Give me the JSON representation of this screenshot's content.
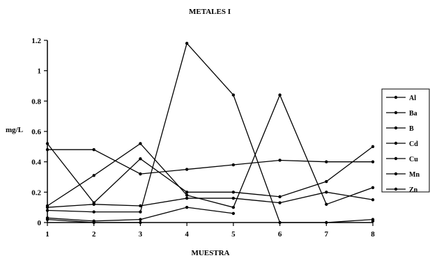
{
  "chart_data": {
    "type": "line",
    "title": "METALES I",
    "xlabel": "MUESTRA",
    "ylabel": "mg/L",
    "x": [
      1,
      2,
      3,
      4,
      5,
      6,
      7,
      8
    ],
    "xlim": [
      1,
      8
    ],
    "ylim": [
      0,
      1.2
    ],
    "yticks": [
      "0",
      "0.2",
      "0.4",
      "0.6",
      "0.8",
      "1",
      "1.2"
    ],
    "grid": false,
    "legend_position": "right",
    "series": [
      {
        "name": "Al",
        "values": [
          0.48,
          0.48,
          0.32,
          0.35,
          0.38,
          0.41,
          0.4,
          0.4
        ]
      },
      {
        "name": "Ba",
        "values": [
          0.52,
          0.13,
          0.42,
          0.2,
          0.2,
          0.17,
          0.27,
          0.5
        ]
      },
      {
        "name": "B",
        "values": [
          0.1,
          0.12,
          0.11,
          0.16,
          0.16,
          0.13,
          0.2,
          0.15
        ]
      },
      {
        "name": "Cd",
        "values": [
          0.11,
          0.31,
          0.52,
          0.18,
          0.1,
          0.84,
          0.12,
          0.23
        ]
      },
      {
        "name": "Cu",
        "values": [
          0.08,
          0.07,
          0.07,
          1.18,
          0.84,
          0.0,
          0.0,
          0.02
        ]
      },
      {
        "name": "Mn",
        "values": [
          0.03,
          0.01,
          0.02,
          0.1,
          0.06,
          null,
          null,
          null
        ]
      },
      {
        "name": "Zn",
        "values": [
          0.02,
          0.0,
          0.0,
          null,
          null,
          null,
          null,
          0.01
        ]
      }
    ]
  }
}
